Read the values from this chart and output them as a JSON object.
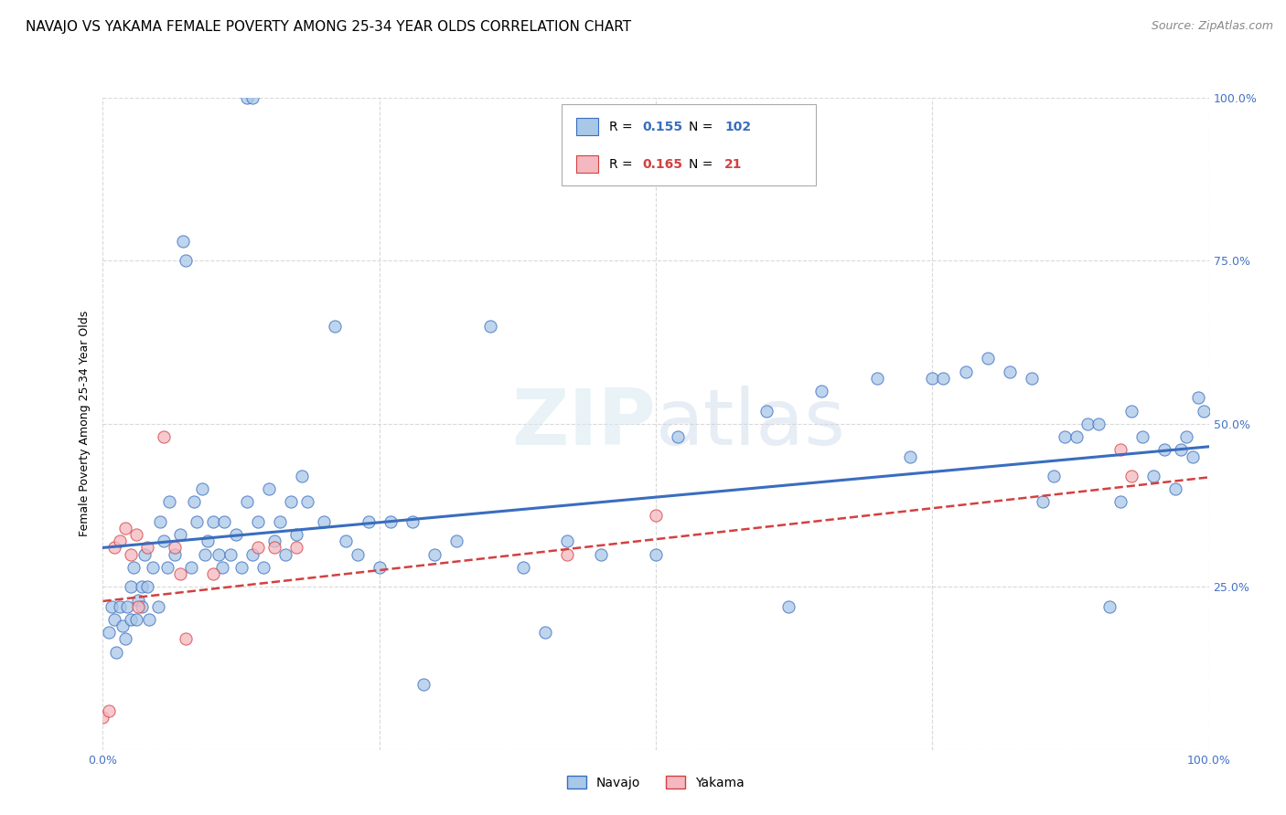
{
  "title": "NAVAJO VS YAKAMA FEMALE POVERTY AMONG 25-34 YEAR OLDS CORRELATION CHART",
  "source": "Source: ZipAtlas.com",
  "ylabel": "Female Poverty Among 25-34 Year Olds",
  "xlim": [
    0,
    1
  ],
  "ylim": [
    0,
    1
  ],
  "navajo_color": "#a8c8e8",
  "yakama_color": "#f4b8c0",
  "trendline_navajo_color": "#3a6dbf",
  "trendline_yakama_color": "#d44040",
  "tick_color": "#4472c4",
  "watermark": "ZIPatlas",
  "legend_navajo_label": "Navajo",
  "legend_yakama_label": "Yakama",
  "R_navajo": "0.155",
  "N_navajo": "102",
  "R_yakama": "0.165",
  "N_yakama": "21",
  "navajo_x": [
    0.005,
    0.008,
    0.01,
    0.012,
    0.015,
    0.018,
    0.02,
    0.022,
    0.025,
    0.025,
    0.028,
    0.03,
    0.032,
    0.035,
    0.035,
    0.038,
    0.04,
    0.042,
    0.045,
    0.05,
    0.052,
    0.055,
    0.058,
    0.06,
    0.065,
    0.07,
    0.072,
    0.075,
    0.08,
    0.082,
    0.085,
    0.09,
    0.092,
    0.095,
    0.1,
    0.105,
    0.108,
    0.11,
    0.115,
    0.12,
    0.125,
    0.13,
    0.135,
    0.14,
    0.145,
    0.15,
    0.155,
    0.16,
    0.165,
    0.17,
    0.175,
    0.18,
    0.185,
    0.2,
    0.21,
    0.22,
    0.23,
    0.24,
    0.25,
    0.26,
    0.28,
    0.29,
    0.3,
    0.32,
    0.35,
    0.38,
    0.4,
    0.42,
    0.45,
    0.5,
    0.52,
    0.6,
    0.62,
    0.65,
    0.7,
    0.73,
    0.75,
    0.76,
    0.78,
    0.8,
    0.82,
    0.84,
    0.85,
    0.86,
    0.87,
    0.88,
    0.89,
    0.9,
    0.91,
    0.92,
    0.93,
    0.94,
    0.95,
    0.96,
    0.97,
    0.975,
    0.98,
    0.985,
    0.99,
    0.995,
    0.13,
    0.135
  ],
  "navajo_y": [
    0.18,
    0.22,
    0.2,
    0.15,
    0.22,
    0.19,
    0.17,
    0.22,
    0.2,
    0.25,
    0.28,
    0.2,
    0.23,
    0.25,
    0.22,
    0.3,
    0.25,
    0.2,
    0.28,
    0.22,
    0.35,
    0.32,
    0.28,
    0.38,
    0.3,
    0.33,
    0.78,
    0.75,
    0.28,
    0.38,
    0.35,
    0.4,
    0.3,
    0.32,
    0.35,
    0.3,
    0.28,
    0.35,
    0.3,
    0.33,
    0.28,
    0.38,
    0.3,
    0.35,
    0.28,
    0.4,
    0.32,
    0.35,
    0.3,
    0.38,
    0.33,
    0.42,
    0.38,
    0.35,
    0.65,
    0.32,
    0.3,
    0.35,
    0.28,
    0.35,
    0.35,
    0.1,
    0.3,
    0.32,
    0.65,
    0.28,
    0.18,
    0.32,
    0.3,
    0.3,
    0.48,
    0.52,
    0.22,
    0.55,
    0.57,
    0.45,
    0.57,
    0.57,
    0.58,
    0.6,
    0.58,
    0.57,
    0.38,
    0.42,
    0.48,
    0.48,
    0.5,
    0.5,
    0.22,
    0.38,
    0.52,
    0.48,
    0.42,
    0.46,
    0.4,
    0.46,
    0.48,
    0.45,
    0.54,
    0.52,
    1.0,
    1.0
  ],
  "yakama_x": [
    0.0,
    0.005,
    0.01,
    0.015,
    0.02,
    0.025,
    0.03,
    0.032,
    0.04,
    0.055,
    0.065,
    0.07,
    0.075,
    0.1,
    0.14,
    0.155,
    0.175,
    0.42,
    0.5,
    0.92,
    0.93
  ],
  "yakama_y": [
    0.05,
    0.06,
    0.31,
    0.32,
    0.34,
    0.3,
    0.33,
    0.22,
    0.31,
    0.48,
    0.31,
    0.27,
    0.17,
    0.27,
    0.31,
    0.31,
    0.31,
    0.3,
    0.36,
    0.46,
    0.42
  ],
  "navajo_trend_x": [
    0.0,
    1.0
  ],
  "navajo_trend_y": [
    0.31,
    0.465
  ],
  "yakama_trend_x": [
    0.0,
    1.0
  ],
  "yakama_trend_y": [
    0.228,
    0.418
  ],
  "background_color": "#ffffff",
  "grid_color": "#d0d0d0",
  "title_fontsize": 11,
  "axis_label_fontsize": 9,
  "tick_fontsize": 9,
  "source_fontsize": 9
}
